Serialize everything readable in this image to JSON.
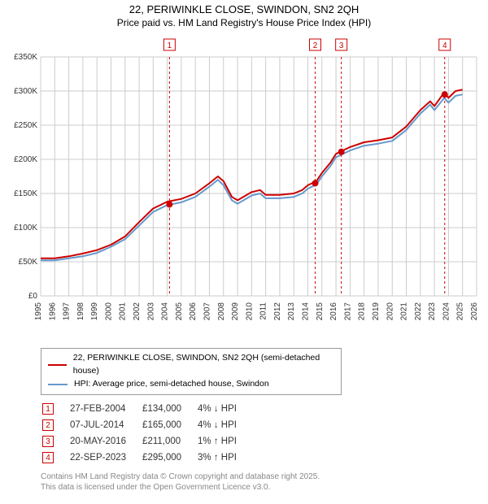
{
  "title": "22, PERIWINKLE CLOSE, SWINDON, SN2 2QH",
  "subtitle": "Price paid vs. HM Land Registry's House Price Index (HPI)",
  "chart": {
    "type": "line",
    "background_color": "#ffffff",
    "grid_color": "#cccccc",
    "xlim": [
      1995,
      2026
    ],
    "ylim": [
      0,
      350000
    ],
    "xtick_step": 1,
    "ytick_step": 50000,
    "ytick_labels": [
      "£0",
      "£50K",
      "£100K",
      "£150K",
      "£200K",
      "£250K",
      "£300K",
      "£350K"
    ],
    "xtick_labels": [
      "1995",
      "1996",
      "1997",
      "1998",
      "1999",
      "2000",
      "2001",
      "2002",
      "2003",
      "2004",
      "2005",
      "2006",
      "2007",
      "2008",
      "2009",
      "2010",
      "2011",
      "2012",
      "2013",
      "2014",
      "2015",
      "2016",
      "2017",
      "2018",
      "2019",
      "2020",
      "2021",
      "2022",
      "2023",
      "2024",
      "2025",
      "2026"
    ],
    "xtick_fontsize": 10,
    "ytick_fontsize": 10,
    "tick_color": "#333333",
    "series": [
      {
        "name": "price_paid",
        "label": "22, PERIWINKLE CLOSE, SWINDON, SN2 2QH (semi-detached house)",
        "color": "#cc0000",
        "line_width": 2,
        "data": [
          [
            1995,
            55000
          ],
          [
            1996,
            55000
          ],
          [
            1997,
            58000
          ],
          [
            1998,
            62000
          ],
          [
            1999,
            67000
          ],
          [
            2000,
            75000
          ],
          [
            2001,
            87000
          ],
          [
            2002,
            108000
          ],
          [
            2003,
            128000
          ],
          [
            2004,
            138000
          ],
          [
            2005,
            142000
          ],
          [
            2006,
            150000
          ],
          [
            2007,
            165000
          ],
          [
            2007.6,
            175000
          ],
          [
            2008,
            168000
          ],
          [
            2008.6,
            145000
          ],
          [
            2009,
            140000
          ],
          [
            2010,
            152000
          ],
          [
            2010.6,
            155000
          ],
          [
            2011,
            148000
          ],
          [
            2012,
            148000
          ],
          [
            2013,
            150000
          ],
          [
            2013.6,
            155000
          ],
          [
            2014,
            162000
          ],
          [
            2014.6,
            168000
          ],
          [
            2015,
            180000
          ],
          [
            2015.6,
            195000
          ],
          [
            2016,
            208000
          ],
          [
            2016.4,
            212000
          ],
          [
            2017,
            218000
          ],
          [
            2018,
            225000
          ],
          [
            2019,
            228000
          ],
          [
            2020,
            232000
          ],
          [
            2021,
            248000
          ],
          [
            2022,
            272000
          ],
          [
            2022.7,
            285000
          ],
          [
            2023,
            278000
          ],
          [
            2023.7,
            298000
          ],
          [
            2024,
            290000
          ],
          [
            2024.5,
            300000
          ],
          [
            2025,
            302000
          ]
        ]
      },
      {
        "name": "hpi",
        "label": "HPI: Average price, semi-detached house, Swindon",
        "color": "#6699cc",
        "line_width": 2,
        "data": [
          [
            1995,
            52000
          ],
          [
            1996,
            52000
          ],
          [
            1997,
            55000
          ],
          [
            1998,
            58000
          ],
          [
            1999,
            63000
          ],
          [
            2000,
            72000
          ],
          [
            2001,
            83000
          ],
          [
            2002,
            103000
          ],
          [
            2003,
            123000
          ],
          [
            2004,
            133000
          ],
          [
            2005,
            137000
          ],
          [
            2006,
            145000
          ],
          [
            2007,
            160000
          ],
          [
            2007.6,
            170000
          ],
          [
            2008,
            162000
          ],
          [
            2008.6,
            140000
          ],
          [
            2009,
            135000
          ],
          [
            2010,
            147000
          ],
          [
            2010.6,
            150000
          ],
          [
            2011,
            143000
          ],
          [
            2012,
            143000
          ],
          [
            2013,
            145000
          ],
          [
            2013.6,
            150000
          ],
          [
            2014,
            157000
          ],
          [
            2014.6,
            163000
          ],
          [
            2015,
            175000
          ],
          [
            2015.6,
            190000
          ],
          [
            2016,
            203000
          ],
          [
            2016.4,
            207000
          ],
          [
            2017,
            213000
          ],
          [
            2018,
            220000
          ],
          [
            2019,
            223000
          ],
          [
            2020,
            227000
          ],
          [
            2021,
            243000
          ],
          [
            2022,
            267000
          ],
          [
            2022.7,
            280000
          ],
          [
            2023,
            272000
          ],
          [
            2023.7,
            290000
          ],
          [
            2024,
            283000
          ],
          [
            2024.5,
            293000
          ],
          [
            2025,
            295000
          ]
        ]
      }
    ],
    "sale_markers": [
      {
        "num": "1",
        "year": 2004.16,
        "price": 134000
      },
      {
        "num": "2",
        "year": 2014.52,
        "price": 165000
      },
      {
        "num": "3",
        "year": 2016.38,
        "price": 211000
      },
      {
        "num": "4",
        "year": 2023.73,
        "price": 295000
      }
    ],
    "marker_line_color": "#cc0000",
    "marker_dot_color": "#cc0000",
    "marker_box_border": "#cc0000",
    "marker_box_text_color": "#cc0000",
    "marker_box_bg": "#ffffff"
  },
  "legend": {
    "items": [
      {
        "color": "#cc0000",
        "label": "22, PERIWINKLE CLOSE, SWINDON, SN2 2QH (semi-detached house)"
      },
      {
        "color": "#6699cc",
        "label": "HPI: Average price, semi-detached house, Swindon"
      }
    ]
  },
  "marker_rows": [
    {
      "num": "1",
      "date": "27-FEB-2004",
      "price": "£134,000",
      "pct": "4%",
      "arrow": "↓",
      "suffix": "HPI"
    },
    {
      "num": "2",
      "date": "07-JUL-2014",
      "price": "£165,000",
      "pct": "4%",
      "arrow": "↓",
      "suffix": "HPI"
    },
    {
      "num": "3",
      "date": "20-MAY-2016",
      "price": "£211,000",
      "pct": "1%",
      "arrow": "↑",
      "suffix": "HPI"
    },
    {
      "num": "4",
      "date": "22-SEP-2023",
      "price": "£295,000",
      "pct": "3%",
      "arrow": "↑",
      "suffix": "HPI"
    }
  ],
  "attribution": {
    "line1": "Contains HM Land Registry data © Crown copyright and database right 2025.",
    "line2": "This data is licensed under the Open Government Licence v3.0."
  }
}
